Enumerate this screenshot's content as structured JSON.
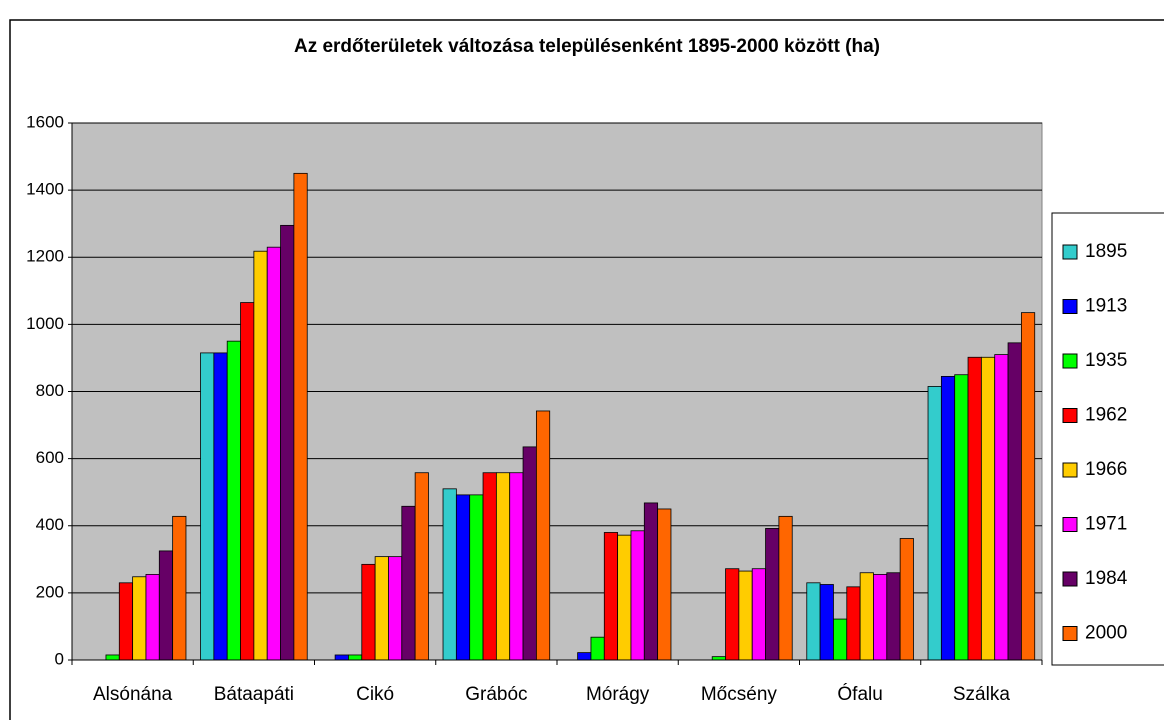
{
  "chart_data": {
    "type": "bar",
    "title": "Az erdőterületek változása településenként 1895-2000 között (ha)",
    "categories": [
      "Alsónána",
      "Bátaapáti",
      "Cikó",
      "Grábóc",
      "Mórágy",
      "Mőcsény",
      "Ófalu",
      "Szálka"
    ],
    "series": [
      {
        "name": "1895",
        "color": "#33cccc",
        "values": [
          0,
          915,
          0,
          510,
          0,
          0,
          230,
          815
        ]
      },
      {
        "name": "1913",
        "color": "#0000ff",
        "values": [
          0,
          915,
          15,
          492,
          22,
          0,
          225,
          845
        ]
      },
      {
        "name": "1935",
        "color": "#00ff00",
        "values": [
          15,
          950,
          15,
          492,
          68,
          10,
          122,
          850
        ]
      },
      {
        "name": "1962",
        "color": "#ff0000",
        "values": [
          230,
          1065,
          285,
          558,
          380,
          272,
          218,
          902
        ]
      },
      {
        "name": "1966",
        "color": "#ffcc00",
        "values": [
          248,
          1218,
          308,
          558,
          372,
          265,
          260,
          902
        ]
      },
      {
        "name": "1971",
        "color": "#ff00ff",
        "values": [
          255,
          1230,
          308,
          558,
          385,
          272,
          255,
          910
        ]
      },
      {
        "name": "1984",
        "color": "#660066",
        "values": [
          325,
          1295,
          458,
          635,
          468,
          392,
          260,
          945
        ]
      },
      {
        "name": "2000",
        "color": "#ff6600",
        "values": [
          428,
          1450,
          558,
          742,
          450,
          428,
          362,
          1035
        ]
      }
    ],
    "ylim": [
      0,
      1600
    ],
    "yticks": [
      0,
      200,
      400,
      600,
      800,
      1000,
      1200,
      1400,
      1600
    ],
    "grid": true,
    "legend": "right"
  }
}
